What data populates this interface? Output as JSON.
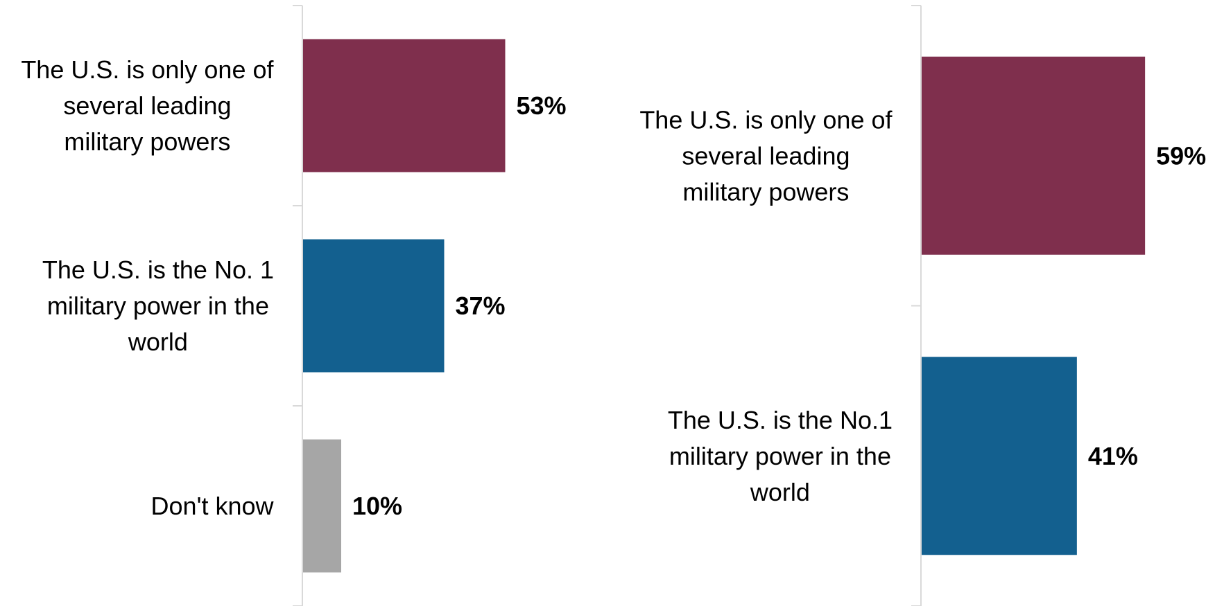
{
  "chart_data": [
    {
      "type": "bar",
      "orientation": "horizontal",
      "categories": [
        "The U.S. is only one of several leading military powers",
        "The U.S. is the No. 1 military power in the world",
        "Don't know"
      ],
      "label_lines": [
        [
          "The U.S. is only one of",
          "several leading",
          "military powers"
        ],
        [
          "The U.S. is the No. 1",
          "military power in the",
          "world"
        ],
        [
          "Don't know"
        ]
      ],
      "values": [
        53,
        37,
        10
      ],
      "value_labels": [
        "53%",
        "37%",
        "10%"
      ],
      "colors": [
        "#7f2f4d",
        "#13608f",
        "#a6a6a6"
      ],
      "xlim": [
        0,
        100
      ],
      "grid": false,
      "title": "",
      "xlabel": "",
      "ylabel": ""
    },
    {
      "type": "bar",
      "orientation": "horizontal",
      "categories": [
        "The U.S. is only one of several leading military powers",
        "The U.S. is the No.1 military power in the world"
      ],
      "label_lines": [
        [
          "The U.S. is only one of",
          "several leading",
          "military powers"
        ],
        [
          "The U.S. is the No.1",
          "military power in the",
          "world"
        ]
      ],
      "values": [
        59,
        41
      ],
      "value_labels": [
        "59%",
        "41%"
      ],
      "colors": [
        "#7f2f4d",
        "#13608f"
      ],
      "xlim": [
        0,
        100
      ],
      "grid": false,
      "title": "",
      "xlabel": "",
      "ylabel": ""
    }
  ]
}
